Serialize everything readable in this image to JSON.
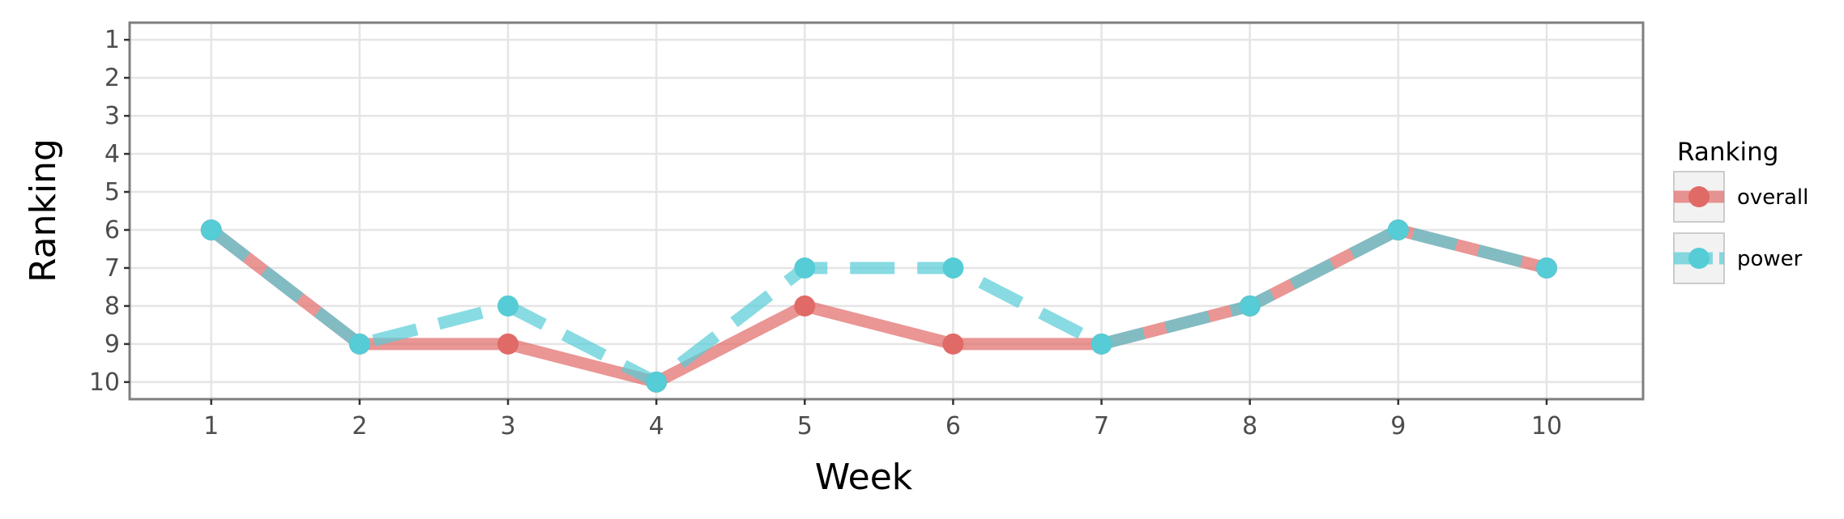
{
  "chart_data": {
    "type": "line",
    "title": "",
    "xlabel": "Week",
    "ylabel": "Ranking",
    "x": [
      1,
      2,
      3,
      4,
      5,
      6,
      7,
      8,
      9,
      10
    ],
    "x_tick_labels": [
      "1",
      "2",
      "3",
      "4",
      "5",
      "6",
      "7",
      "8",
      "9",
      "10"
    ],
    "y_tick_labels": [
      "1",
      "2",
      "3",
      "4",
      "5",
      "6",
      "7",
      "8",
      "9",
      "10"
    ],
    "xlim": [
      0.45,
      10.65
    ],
    "ylim": [
      10.45,
      0.55
    ],
    "y_reversed": true,
    "grid": true,
    "legend": {
      "title": "Ranking",
      "position": "right"
    },
    "series": [
      {
        "name": "overall",
        "values": [
          6,
          9,
          9,
          10,
          8,
          9,
          9,
          8,
          6,
          7
        ],
        "color": "#E06A66",
        "style": "solid"
      },
      {
        "name": "power",
        "values": [
          6,
          9,
          8,
          10,
          7,
          7,
          9,
          8,
          6,
          7
        ],
        "color": "#55CCD6",
        "style": "dashed"
      }
    ]
  }
}
